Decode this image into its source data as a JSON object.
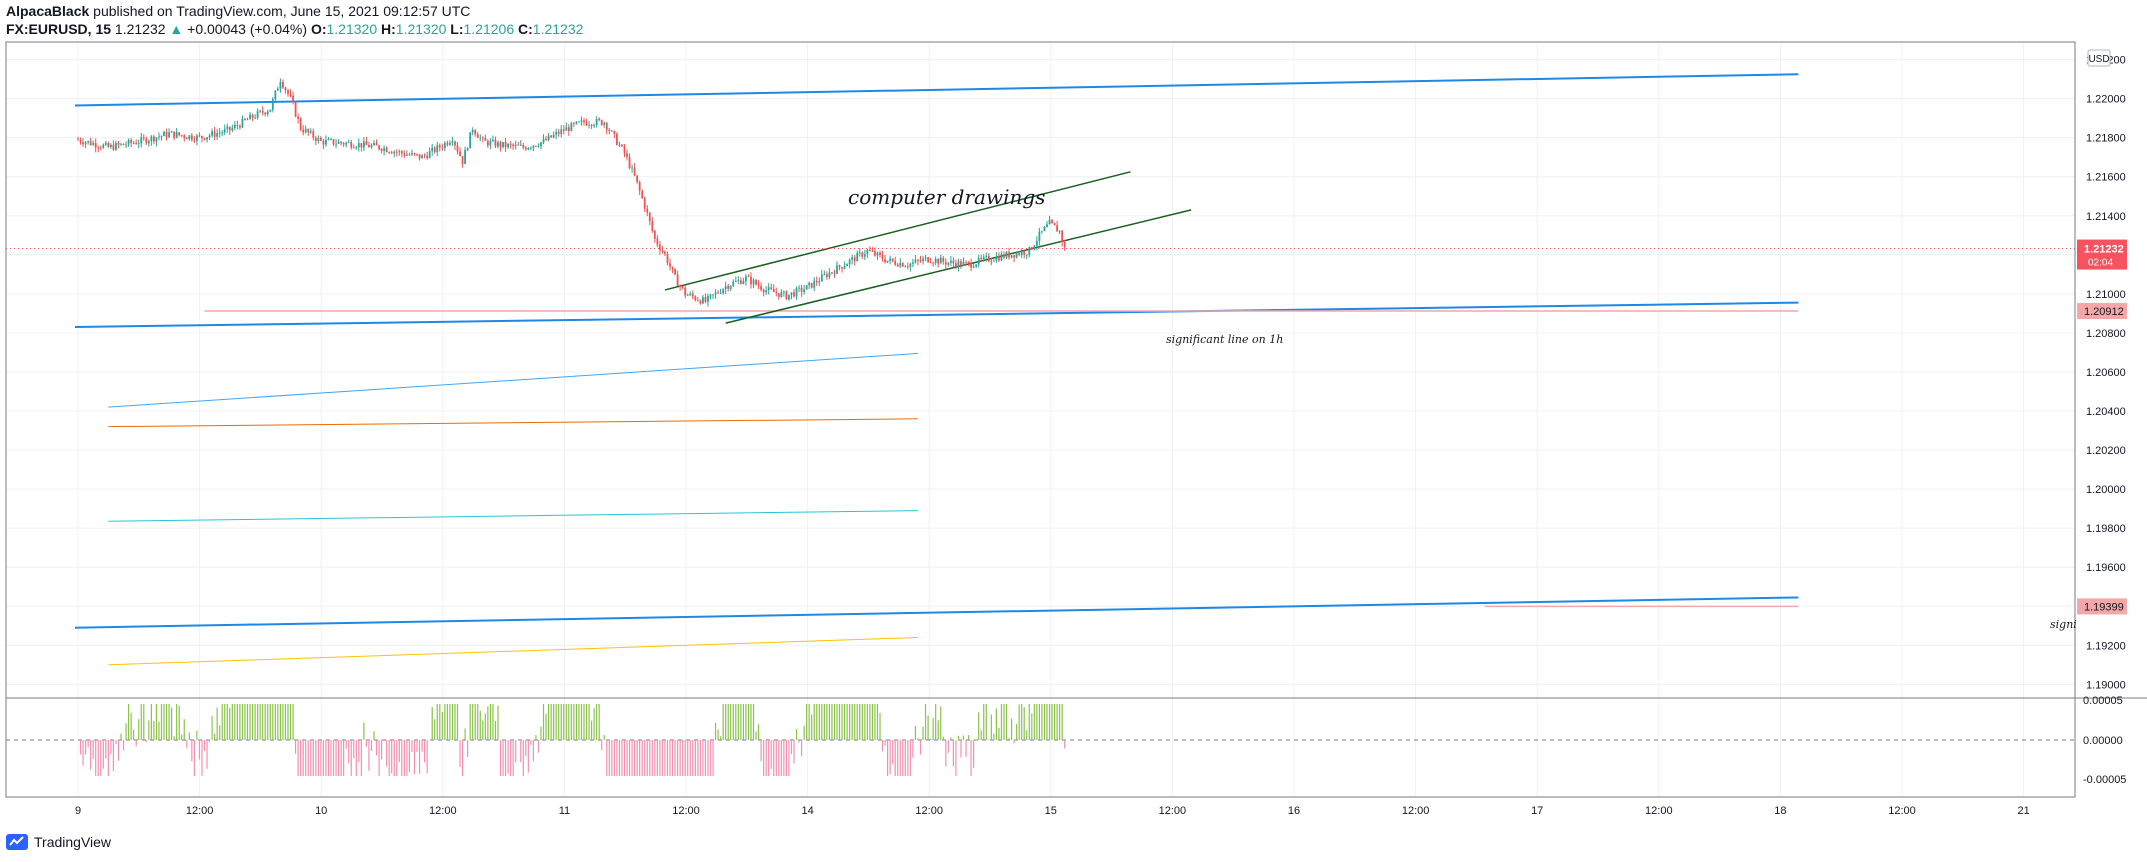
{
  "header": {
    "user": "AlpacaBlack",
    "published_text": "published on TradingView.com, June 15, 2021 09:12:57 UTC",
    "symbol": "FX:EURUSD, 15",
    "last": "1.21232",
    "change": "+0.00043 (+0.04%)",
    "o_label": "O:",
    "o": "1.21320",
    "h_label": "H:",
    "h": "1.21320",
    "l_label": "L:",
    "l": "1.21206",
    "c_label": "C:",
    "c": "1.21232"
  },
  "footer": {
    "logo_text": "TradingView"
  },
  "colors": {
    "bull": "#26a69a",
    "bear": "#ef5350",
    "grid": "#eef1f5",
    "channel": "#1b5e20",
    "trend_blue": "#1e88e5",
    "label_red": "#f7525f"
  },
  "chart_data": {
    "type": "candlestick",
    "symbol": "FX:EURUSD",
    "interval": "15",
    "currency": "USD",
    "y_ticks": [
      "1.22200",
      "1.22000",
      "1.21800",
      "1.21600",
      "1.21400",
      "1.21200",
      "1.21000",
      "1.20800",
      "1.20600",
      "1.20400",
      "1.20200",
      "1.20000",
      "1.19800",
      "1.19600",
      "1.19400",
      "1.19200",
      "1.19000"
    ],
    "x_ticks": [
      "9",
      "12:00",
      "10",
      "12:00",
      "11",
      "12:00",
      "14",
      "12:00",
      "15",
      "12:00",
      "16",
      "12:00",
      "17",
      "12:00",
      "18",
      "12:00",
      "21"
    ],
    "price_labels": [
      {
        "value": "1.21232",
        "time": "02:04",
        "color": "#f7525f"
      },
      {
        "value": "1.20912",
        "color": "#f4a7a9"
      },
      {
        "value": "1.19399",
        "color": "#f4a7a9"
      }
    ],
    "annotations": [
      "computer drawings",
      "significant line on 1h",
      "signi"
    ],
    "indicator": {
      "y_ticks": [
        "0.00005",
        "0.00000",
        "-0.00005"
      ],
      "type": "histogram"
    },
    "price_path": [
      [
        0,
        1.2179
      ],
      [
        3,
        1.2175
      ],
      [
        6,
        1.2178
      ],
      [
        9,
        1.2182
      ],
      [
        12,
        1.218
      ],
      [
        15,
        1.2184
      ],
      [
        17,
        1.219
      ],
      [
        19,
        1.2195
      ],
      [
        20,
        1.221
      ],
      [
        21,
        1.22
      ],
      [
        22,
        1.2185
      ],
      [
        24,
        1.2178
      ],
      [
        27,
        1.2177
      ],
      [
        30,
        1.2175
      ],
      [
        32,
        1.2172
      ],
      [
        34,
        1.217
      ],
      [
        36,
        1.2176
      ],
      [
        37,
        1.218
      ],
      [
        38,
        1.2168
      ],
      [
        39,
        1.2185
      ],
      [
        40,
        1.2178
      ],
      [
        42,
        1.2176
      ],
      [
        44,
        1.2175
      ],
      [
        46,
        1.2178
      ],
      [
        48,
        1.2184
      ],
      [
        50,
        1.2188
      ],
      [
        52,
        1.2188
      ],
      [
        53,
        1.218
      ],
      [
        54,
        1.2172
      ],
      [
        55,
        1.216
      ],
      [
        56,
        1.2145
      ],
      [
        57,
        1.2128
      ],
      [
        58,
        1.212
      ],
      [
        59,
        1.2108
      ],
      [
        60,
        1.21
      ],
      [
        62,
        1.2096
      ],
      [
        64,
        1.2104
      ],
      [
        66,
        1.2108
      ],
      [
        68,
        1.2102
      ],
      [
        70,
        1.2099
      ],
      [
        72,
        1.2103
      ],
      [
        74,
        1.211
      ],
      [
        76,
        1.2116
      ],
      [
        78,
        1.2122
      ],
      [
        80,
        1.2117
      ],
      [
        82,
        1.2115
      ],
      [
        84,
        1.2118
      ],
      [
        86,
        1.2116
      ],
      [
        88,
        1.2115
      ],
      [
        90,
        1.2118
      ],
      [
        92,
        1.212
      ],
      [
        94,
        1.2122
      ],
      [
        95,
        1.213
      ],
      [
        96,
        1.2136
      ],
      [
        97,
        1.2132
      ],
      [
        97.5,
        1.2123
      ]
    ],
    "drawings": [
      {
        "kind": "line",
        "color": "#1e88e5",
        "width": 2,
        "from": [
          -0.3,
          1.21965
        ],
        "to": [
          170,
          1.22125
        ]
      },
      {
        "kind": "line",
        "color": "#1e88e5",
        "width": 2,
        "from": [
          -0.3,
          1.2083
        ],
        "to": [
          170,
          1.20955
        ]
      },
      {
        "kind": "line",
        "color": "#1e88e5",
        "width": 2,
        "from": [
          -0.3,
          1.1929
        ],
        "to": [
          170,
          1.19445
        ]
      },
      {
        "kind": "line",
        "color": "#42a5f5",
        "width": 1,
        "from": [
          3,
          1.2042
        ],
        "to": [
          83,
          1.20695
        ]
      },
      {
        "kind": "line",
        "color": "#ef6c00",
        "width": 1,
        "from": [
          3,
          1.2032
        ],
        "to": [
          83,
          1.2036
        ]
      },
      {
        "kind": "line",
        "color": "#26c6da",
        "width": 1,
        "from": [
          3,
          1.19835
        ],
        "to": [
          83,
          1.1989
        ]
      },
      {
        "kind": "line",
        "color": "#ffc107",
        "width": 1,
        "from": [
          3,
          1.191
        ],
        "to": [
          83,
          1.1924
        ]
      },
      {
        "kind": "line",
        "color": "#f4a7a9",
        "width": 1.5,
        "from": [
          12.5,
          1.20912
        ],
        "to": [
          170,
          1.20912
        ]
      },
      {
        "kind": "line",
        "color": "#f4a7a9",
        "width": 1.5,
        "from": [
          139,
          1.19399
        ],
        "to": [
          170,
          1.19399
        ]
      },
      {
        "kind": "line",
        "color": "#1b5e20",
        "width": 1.5,
        "from": [
          58,
          1.2102
        ],
        "to": [
          104,
          1.21625
        ]
      },
      {
        "kind": "line",
        "color": "#1b5e20",
        "width": 1.5,
        "from": [
          64,
          1.2085
        ],
        "to": [
          110,
          1.2143
        ]
      }
    ],
    "current_price": 1.21232
  }
}
